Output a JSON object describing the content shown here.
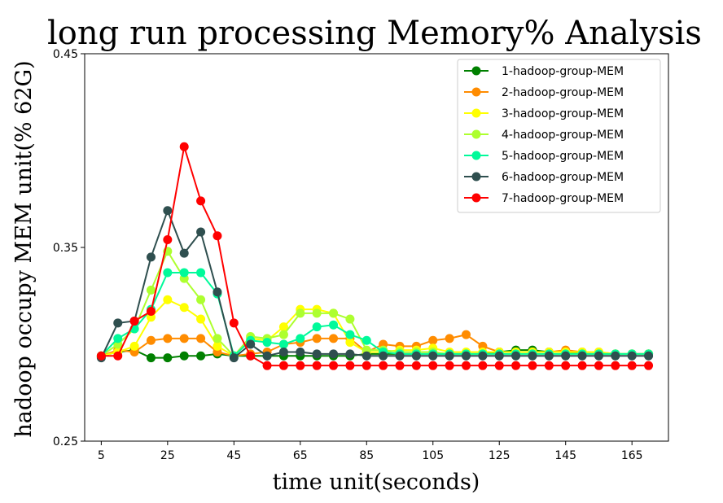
{
  "chart_data": {
    "type": "line",
    "title": "long run processing Memory% Analysis",
    "xlabel": "time unit(seconds)",
    "ylabel": "hadoop occupy MEM unit(% 62G)",
    "xlim": [
      0,
      176
    ],
    "ylim": [
      0.25,
      0.45
    ],
    "xticks": [
      5,
      25,
      45,
      65,
      85,
      105,
      125,
      145,
      165
    ],
    "yticks": [
      0.25,
      0.35,
      0.45
    ],
    "ytick_labels": [
      "0.25",
      "0.35",
      "0.45"
    ],
    "legend_position": "top-right",
    "grid": false,
    "x": [
      5,
      10,
      15,
      20,
      25,
      30,
      35,
      40,
      45,
      50,
      55,
      60,
      65,
      70,
      75,
      80,
      85,
      90,
      95,
      100,
      105,
      110,
      115,
      120,
      125,
      130,
      135,
      140,
      145,
      150,
      155,
      160,
      165,
      170
    ],
    "series": [
      {
        "name": "1-hadoop-group-MEM",
        "color": "#008000",
        "values": [
          0.294,
          0.296,
          0.297,
          0.293,
          0.293,
          0.294,
          0.294,
          0.295,
          0.294,
          0.294,
          0.294,
          0.294,
          0.294,
          0.294,
          0.294,
          0.294,
          0.295,
          0.295,
          0.295,
          0.295,
          0.295,
          0.295,
          0.295,
          0.295,
          0.296,
          0.297,
          0.297,
          0.296,
          0.296,
          0.295,
          0.295,
          0.295,
          0.295,
          0.295
        ]
      },
      {
        "name": "2-hadoop-group-MEM",
        "color": "#ff8c00",
        "values": [
          0.294,
          0.297,
          0.296,
          0.302,
          0.303,
          0.303,
          0.303,
          0.296,
          0.294,
          0.295,
          0.296,
          0.3,
          0.301,
          0.303,
          0.303,
          0.303,
          0.296,
          0.3,
          0.299,
          0.299,
          0.302,
          0.303,
          0.305,
          0.299,
          0.296,
          0.296,
          0.296,
          0.296,
          0.297,
          0.296,
          0.296,
          0.295,
          0.295,
          0.295
        ]
      },
      {
        "name": "3-hadoop-group-MEM",
        "color": "#ffff00",
        "values": [
          0.294,
          0.296,
          0.299,
          0.314,
          0.323,
          0.319,
          0.313,
          0.299,
          0.294,
          0.303,
          0.302,
          0.309,
          0.318,
          0.318,
          0.316,
          0.301,
          0.296,
          0.296,
          0.297,
          0.297,
          0.298,
          0.296,
          0.296,
          0.296,
          0.296,
          0.296,
          0.296,
          0.296,
          0.296,
          0.296,
          0.296,
          0.295,
          0.295,
          0.295
        ]
      },
      {
        "name": "4-hadoop-group-MEM",
        "color": "#adff2f",
        "values": [
          0.294,
          0.3,
          0.308,
          0.328,
          0.348,
          0.334,
          0.323,
          0.303,
          0.294,
          0.304,
          0.303,
          0.305,
          0.316,
          0.316,
          0.316,
          0.313,
          0.297,
          0.297,
          0.296,
          0.296,
          0.296,
          0.295,
          0.295,
          0.295,
          0.295,
          0.295,
          0.295,
          0.295,
          0.295,
          0.295,
          0.295,
          0.295,
          0.295,
          0.295
        ]
      },
      {
        "name": "5-hadoop-group-MEM",
        "color": "#00fa9a",
        "values": [
          0.294,
          0.303,
          0.308,
          0.318,
          0.337,
          0.337,
          0.337,
          0.326,
          0.294,
          0.302,
          0.301,
          0.3,
          0.303,
          0.309,
          0.31,
          0.305,
          0.302,
          0.296,
          0.295,
          0.295,
          0.295,
          0.295,
          0.295,
          0.295,
          0.295,
          0.295,
          0.295,
          0.295,
          0.295,
          0.295,
          0.295,
          0.295,
          0.295,
          0.295
        ]
      },
      {
        "name": "6-hadoop-group-MEM",
        "color": "#2f4f4f",
        "values": [
          0.293,
          0.311,
          0.312,
          0.345,
          0.369,
          0.347,
          0.358,
          0.327,
          0.293,
          0.3,
          0.294,
          0.296,
          0.296,
          0.295,
          0.295,
          0.295,
          0.294,
          0.294,
          0.294,
          0.294,
          0.294,
          0.294,
          0.294,
          0.294,
          0.294,
          0.294,
          0.294,
          0.294,
          0.294,
          0.294,
          0.294,
          0.294,
          0.294,
          0.294
        ]
      },
      {
        "name": "7-hadoop-group-MEM",
        "color": "#ff0000",
        "values": [
          0.294,
          0.294,
          0.312,
          0.317,
          0.354,
          0.402,
          0.374,
          0.356,
          0.311,
          0.294,
          0.289,
          0.289,
          0.289,
          0.289,
          0.289,
          0.289,
          0.289,
          0.289,
          0.289,
          0.289,
          0.289,
          0.289,
          0.289,
          0.289,
          0.289,
          0.289,
          0.289,
          0.289,
          0.289,
          0.289,
          0.289,
          0.289,
          0.289,
          0.289
        ]
      }
    ]
  }
}
